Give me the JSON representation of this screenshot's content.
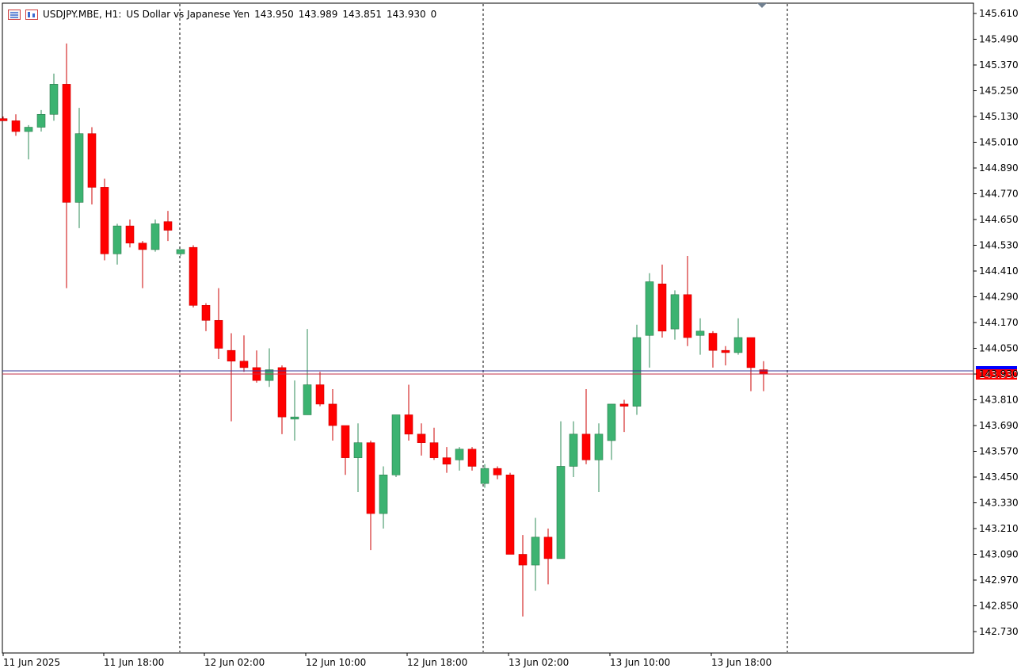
{
  "header": {
    "symbol": "USDJPY.MBE, H1:",
    "description": "US Dollar vs Japanese Yen",
    "open": "143.950",
    "high": "143.989",
    "low": "143.851",
    "close": "143.930",
    "volume": "0"
  },
  "colors": {
    "bull": "#3cb371",
    "bear": "#ff0000",
    "wick_bull": "#2e8b57",
    "wick_bear": "#cc0000",
    "bid_line": "#c0304a",
    "ask_line": "#3a3a9a",
    "price_tag": "#ff0000",
    "ask_tag": "#0000ff",
    "grid": "#000000"
  },
  "chart_data": {
    "type": "candlestick",
    "symbol": "USDJPY.MBE",
    "timeframe": "H1",
    "y_ticks": [
      "145.610",
      "145.490",
      "145.370",
      "145.250",
      "145.130",
      "145.010",
      "144.890",
      "144.770",
      "144.650",
      "144.530",
      "144.410",
      "144.290",
      "144.170",
      "144.050",
      "143.930",
      "143.810",
      "143.690",
      "143.570",
      "143.450",
      "143.330",
      "143.210",
      "143.090",
      "142.970",
      "142.850",
      "142.730"
    ],
    "ylim": [
      142.66,
      145.66
    ],
    "x_labels": [
      "11 Jun 2025",
      "11 Jun 18:00",
      "12 Jun 02:00",
      "12 Jun 10:00",
      "12 Jun 18:00",
      "13 Jun 02:00",
      "13 Jun 10:00",
      "13 Jun 18:00"
    ],
    "current_price": "143.930",
    "candles": [
      {
        "o": 145.12,
        "h": 145.13,
        "l": 145.12,
        "c": 145.11
      },
      {
        "o": 145.11,
        "h": 145.14,
        "l": 145.04,
        "c": 145.06
      },
      {
        "o": 145.06,
        "h": 145.09,
        "l": 144.93,
        "c": 145.08
      },
      {
        "o": 145.08,
        "h": 145.16,
        "l": 145.06,
        "c": 145.14
      },
      {
        "o": 145.14,
        "h": 145.33,
        "l": 145.11,
        "c": 145.28
      },
      {
        "o": 145.28,
        "h": 145.47,
        "l": 144.33,
        "c": 144.73
      },
      {
        "o": 144.73,
        "h": 145.17,
        "l": 144.61,
        "c": 145.05
      },
      {
        "o": 145.05,
        "h": 145.08,
        "l": 144.72,
        "c": 144.8
      },
      {
        "o": 144.8,
        "h": 144.84,
        "l": 144.46,
        "c": 144.49
      },
      {
        "o": 144.49,
        "h": 144.63,
        "l": 144.44,
        "c": 144.62
      },
      {
        "o": 144.62,
        "h": 144.65,
        "l": 144.52,
        "c": 144.54
      },
      {
        "o": 144.54,
        "h": 144.55,
        "l": 144.33,
        "c": 144.51
      },
      {
        "o": 144.51,
        "h": 144.65,
        "l": 144.5,
        "c": 144.63
      },
      {
        "o": 144.64,
        "h": 144.69,
        "l": 144.55,
        "c": 144.6
      },
      {
        "o": 144.49,
        "h": 144.51,
        "l": 144.48,
        "c": 144.51
      },
      {
        "o": 144.52,
        "h": 144.53,
        "l": 144.24,
        "c": 144.25
      },
      {
        "o": 144.25,
        "h": 144.26,
        "l": 144.13,
        "c": 144.18
      },
      {
        "o": 144.18,
        "h": 144.33,
        "l": 144.0,
        "c": 144.05
      },
      {
        "o": 144.04,
        "h": 144.12,
        "l": 143.71,
        "c": 143.99
      },
      {
        "o": 143.99,
        "h": 144.11,
        "l": 143.94,
        "c": 143.96
      },
      {
        "o": 143.96,
        "h": 144.04,
        "l": 143.89,
        "c": 143.9
      },
      {
        "o": 143.9,
        "h": 144.05,
        "l": 143.87,
        "c": 143.95
      },
      {
        "o": 143.96,
        "h": 143.97,
        "l": 143.65,
        "c": 143.73
      },
      {
        "o": 143.72,
        "h": 143.9,
        "l": 143.62,
        "c": 143.73
      },
      {
        "o": 143.74,
        "h": 144.14,
        "l": 143.74,
        "c": 143.88
      },
      {
        "o": 143.88,
        "h": 143.94,
        "l": 143.78,
        "c": 143.79
      },
      {
        "o": 143.79,
        "h": 143.86,
        "l": 143.62,
        "c": 143.69
      },
      {
        "o": 143.69,
        "h": 143.69,
        "l": 143.46,
        "c": 143.54
      },
      {
        "o": 143.54,
        "h": 143.7,
        "l": 143.38,
        "c": 143.61
      },
      {
        "o": 143.61,
        "h": 143.62,
        "l": 143.11,
        "c": 143.28
      },
      {
        "o": 143.28,
        "h": 143.5,
        "l": 143.21,
        "c": 143.46
      },
      {
        "o": 143.46,
        "h": 143.74,
        "l": 143.45,
        "c": 143.74
      },
      {
        "o": 143.74,
        "h": 143.88,
        "l": 143.62,
        "c": 143.65
      },
      {
        "o": 143.65,
        "h": 143.7,
        "l": 143.55,
        "c": 143.61
      },
      {
        "o": 143.61,
        "h": 143.68,
        "l": 143.53,
        "c": 143.54
      },
      {
        "o": 143.54,
        "h": 143.59,
        "l": 143.47,
        "c": 143.51
      },
      {
        "o": 143.53,
        "h": 143.59,
        "l": 143.48,
        "c": 143.58
      },
      {
        "o": 143.58,
        "h": 143.59,
        "l": 143.48,
        "c": 143.5
      },
      {
        "o": 143.42,
        "h": 143.51,
        "l": 143.4,
        "c": 143.49
      },
      {
        "o": 143.49,
        "h": 143.5,
        "l": 143.44,
        "c": 143.46
      },
      {
        "o": 143.46,
        "h": 143.47,
        "l": 143.09,
        "c": 143.09
      },
      {
        "o": 143.09,
        "h": 143.18,
        "l": 142.8,
        "c": 143.04
      },
      {
        "o": 143.04,
        "h": 143.26,
        "l": 142.92,
        "c": 143.17
      },
      {
        "o": 143.17,
        "h": 143.21,
        "l": 142.95,
        "c": 143.07
      },
      {
        "o": 143.07,
        "h": 143.71,
        "l": 143.07,
        "c": 143.5
      },
      {
        "o": 143.5,
        "h": 143.71,
        "l": 143.45,
        "c": 143.65
      },
      {
        "o": 143.65,
        "h": 143.86,
        "l": 143.51,
        "c": 143.53
      },
      {
        "o": 143.53,
        "h": 143.7,
        "l": 143.38,
        "c": 143.65
      },
      {
        "o": 143.62,
        "h": 143.79,
        "l": 143.53,
        "c": 143.79
      },
      {
        "o": 143.79,
        "h": 143.81,
        "l": 143.66,
        "c": 143.78
      },
      {
        "o": 143.78,
        "h": 144.16,
        "l": 143.74,
        "c": 144.1
      },
      {
        "o": 144.11,
        "h": 144.4,
        "l": 143.96,
        "c": 144.36
      },
      {
        "o": 144.35,
        "h": 144.44,
        "l": 144.1,
        "c": 144.13
      },
      {
        "o": 144.14,
        "h": 144.32,
        "l": 144.09,
        "c": 144.3
      },
      {
        "o": 144.3,
        "h": 144.48,
        "l": 144.06,
        "c": 144.1
      },
      {
        "o": 144.11,
        "h": 144.19,
        "l": 144.02,
        "c": 144.13
      },
      {
        "o": 144.12,
        "h": 144.13,
        "l": 143.96,
        "c": 144.04
      },
      {
        "o": 144.04,
        "h": 144.06,
        "l": 143.97,
        "c": 144.03
      },
      {
        "o": 144.03,
        "h": 144.19,
        "l": 144.02,
        "c": 144.1
      },
      {
        "o": 144.1,
        "h": 144.1,
        "l": 143.85,
        "c": 143.96
      },
      {
        "o": 143.95,
        "h": 143.99,
        "l": 143.85,
        "c": 143.93
      }
    ]
  }
}
